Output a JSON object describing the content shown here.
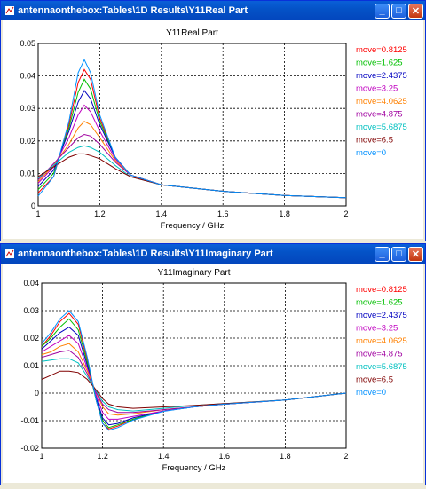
{
  "windows": [
    {
      "title": "antennaonthebox:Tables\\1D Results\\Y11Real Part",
      "minimize_icon": "minimize-icon",
      "maximize_icon": "maximize-icon",
      "close_icon": "close-icon"
    },
    {
      "title": "antennaonthebox:Tables\\1D Results\\Y11Imaginary Part",
      "minimize_icon": "minimize-icon",
      "maximize_icon": "maximize-icon",
      "close_icon": "close-icon"
    }
  ],
  "chart_data": [
    {
      "type": "line",
      "title": "Y11Real Part",
      "xlabel": "Frequency / GHz",
      "ylabel": "",
      "xlim": [
        1,
        2
      ],
      "ylim": [
        0,
        0.05
      ],
      "xticks": [
        "1",
        "1.2",
        "1.4",
        "1.6",
        "1.8",
        "2"
      ],
      "yticks": [
        "0",
        "0.01",
        "0.02",
        "0.03",
        "0.04",
        "0.05"
      ],
      "grid": true,
      "legend_position": "right",
      "series": [
        {
          "name": "move=0.8125",
          "color": "#ff0000",
          "x": [
            1,
            1.05,
            1.1,
            1.13,
            1.15,
            1.17,
            1.2,
            1.25,
            1.3,
            1.4,
            1.5,
            1.6,
            1.8,
            2
          ],
          "y": [
            0.004,
            0.009,
            0.025,
            0.038,
            0.042,
            0.039,
            0.027,
            0.015,
            0.0095,
            0.0065,
            0.0055,
            0.0045,
            0.0032,
            0.0025
          ]
        },
        {
          "name": "move=1.625",
          "color": "#00c000",
          "x": [
            1,
            1.05,
            1.1,
            1.13,
            1.15,
            1.17,
            1.2,
            1.25,
            1.3,
            1.4,
            1.5,
            1.6,
            1.8,
            2
          ],
          "y": [
            0.005,
            0.01,
            0.024,
            0.035,
            0.039,
            0.036,
            0.026,
            0.015,
            0.0095,
            0.0065,
            0.0055,
            0.0045,
            0.0032,
            0.0025
          ]
        },
        {
          "name": "move=2.4375",
          "color": "#0000c0",
          "x": [
            1,
            1.05,
            1.1,
            1.13,
            1.15,
            1.17,
            1.2,
            1.25,
            1.3,
            1.4,
            1.5,
            1.6,
            1.8,
            2
          ],
          "y": [
            0.006,
            0.011,
            0.023,
            0.032,
            0.0355,
            0.033,
            0.025,
            0.015,
            0.0095,
            0.0065,
            0.0055,
            0.0045,
            0.0032,
            0.0025
          ]
        },
        {
          "name": "move=3.25",
          "color": "#c000c0",
          "x": [
            1,
            1.05,
            1.1,
            1.13,
            1.15,
            1.17,
            1.2,
            1.25,
            1.3,
            1.4,
            1.5,
            1.6,
            1.8,
            2
          ],
          "y": [
            0.007,
            0.012,
            0.021,
            0.028,
            0.031,
            0.029,
            0.023,
            0.0145,
            0.0095,
            0.0065,
            0.0055,
            0.0045,
            0.0032,
            0.0025
          ]
        },
        {
          "name": "move=4.0625",
          "color": "#ff8000",
          "x": [
            1,
            1.05,
            1.1,
            1.13,
            1.15,
            1.17,
            1.2,
            1.25,
            1.3,
            1.4,
            1.5,
            1.6,
            1.8,
            2
          ],
          "y": [
            0.0075,
            0.0125,
            0.019,
            0.024,
            0.026,
            0.025,
            0.021,
            0.014,
            0.0095,
            0.0065,
            0.0055,
            0.0045,
            0.0032,
            0.0025
          ]
        },
        {
          "name": "move=4.875",
          "color": "#a000a0",
          "x": [
            1,
            1.05,
            1.1,
            1.13,
            1.15,
            1.17,
            1.2,
            1.25,
            1.3,
            1.4,
            1.5,
            1.6,
            1.8,
            2
          ],
          "y": [
            0.008,
            0.013,
            0.018,
            0.021,
            0.022,
            0.0215,
            0.019,
            0.0135,
            0.0095,
            0.0065,
            0.0055,
            0.0045,
            0.0032,
            0.0025
          ]
        },
        {
          "name": "move=5.6875",
          "color": "#00c0c0",
          "x": [
            1,
            1.05,
            1.1,
            1.13,
            1.15,
            1.17,
            1.2,
            1.25,
            1.3,
            1.4,
            1.5,
            1.6,
            1.8,
            2
          ],
          "y": [
            0.0085,
            0.0125,
            0.0165,
            0.018,
            0.0185,
            0.018,
            0.0165,
            0.0125,
            0.009,
            0.0065,
            0.0055,
            0.0045,
            0.0032,
            0.0025
          ]
        },
        {
          "name": "move=6.5",
          "color": "#800000",
          "x": [
            1,
            1.05,
            1.1,
            1.13,
            1.15,
            1.17,
            1.2,
            1.25,
            1.3,
            1.4,
            1.5,
            1.6,
            1.8,
            2
          ],
          "y": [
            0.009,
            0.012,
            0.015,
            0.016,
            0.016,
            0.0155,
            0.0145,
            0.0115,
            0.009,
            0.0065,
            0.0055,
            0.0045,
            0.0032,
            0.0025
          ]
        },
        {
          "name": "move=0",
          "color": "#0090ff",
          "x": [
            1,
            1.05,
            1.1,
            1.13,
            1.15,
            1.17,
            1.2,
            1.25,
            1.3,
            1.4,
            1.5,
            1.6,
            1.8,
            2
          ],
          "y": [
            0.003,
            0.009,
            0.026,
            0.041,
            0.045,
            0.041,
            0.028,
            0.015,
            0.0095,
            0.0065,
            0.0055,
            0.0045,
            0.0032,
            0.0025
          ]
        }
      ]
    },
    {
      "type": "line",
      "title": "Y11Imaginary Part",
      "xlabel": "Frequency / GHz",
      "ylabel": "",
      "xlim": [
        1,
        2
      ],
      "ylim": [
        -0.02,
        0.04
      ],
      "xticks": [
        "1",
        "1.2",
        "1.4",
        "1.6",
        "1.8",
        "2"
      ],
      "yticks": [
        "-0.02",
        "-0.01",
        "0",
        "0.01",
        "0.02",
        "0.03",
        "0.04"
      ],
      "grid": true,
      "legend_position": "right",
      "series": [
        {
          "name": "move=0.8125",
          "color": "#ff0000",
          "x": [
            1,
            1.03,
            1.06,
            1.09,
            1.12,
            1.15,
            1.18,
            1.2,
            1.22,
            1.25,
            1.3,
            1.4,
            1.5,
            1.6,
            1.8,
            2
          ],
          "y": [
            0.017,
            0.021,
            0.026,
            0.029,
            0.025,
            0.012,
            -0.003,
            -0.011,
            -0.013,
            -0.012,
            -0.0095,
            -0.0065,
            -0.005,
            -0.004,
            -0.0025,
            0
          ]
        },
        {
          "name": "move=1.625",
          "color": "#00c000",
          "x": [
            1,
            1.03,
            1.06,
            1.09,
            1.12,
            1.15,
            1.18,
            1.2,
            1.22,
            1.25,
            1.3,
            1.4,
            1.5,
            1.6,
            1.8,
            2
          ],
          "y": [
            0.017,
            0.02,
            0.024,
            0.027,
            0.023,
            0.011,
            -0.003,
            -0.01,
            -0.0125,
            -0.0115,
            -0.0095,
            -0.0065,
            -0.005,
            -0.004,
            -0.0025,
            0
          ]
        },
        {
          "name": "move=2.4375",
          "color": "#0000c0",
          "x": [
            1,
            1.03,
            1.06,
            1.09,
            1.12,
            1.15,
            1.18,
            1.2,
            1.22,
            1.25,
            1.3,
            1.4,
            1.5,
            1.6,
            1.8,
            2
          ],
          "y": [
            0.016,
            0.019,
            0.022,
            0.024,
            0.021,
            0.01,
            -0.002,
            -0.009,
            -0.0115,
            -0.011,
            -0.009,
            -0.0065,
            -0.005,
            -0.004,
            -0.0025,
            0
          ]
        },
        {
          "name": "move=3.25",
          "color": "#c000c0",
          "x": [
            1,
            1.03,
            1.06,
            1.09,
            1.12,
            1.15,
            1.18,
            1.2,
            1.22,
            1.25,
            1.3,
            1.4,
            1.5,
            1.6,
            1.8,
            2
          ],
          "y": [
            0.015,
            0.017,
            0.019,
            0.021,
            0.018,
            0.009,
            -0.001,
            -0.007,
            -0.0095,
            -0.0095,
            -0.0085,
            -0.0065,
            -0.005,
            -0.004,
            -0.0025,
            0
          ]
        },
        {
          "name": "move=4.0625",
          "color": "#ff8000",
          "x": [
            1,
            1.03,
            1.06,
            1.09,
            1.12,
            1.15,
            1.18,
            1.2,
            1.22,
            1.25,
            1.3,
            1.4,
            1.5,
            1.6,
            1.8,
            2
          ],
          "y": [
            0.014,
            0.015,
            0.017,
            0.018,
            0.015,
            0.008,
            0,
            -0.005,
            -0.0075,
            -0.008,
            -0.0075,
            -0.006,
            -0.005,
            -0.004,
            -0.0025,
            0
          ]
        },
        {
          "name": "move=4.875",
          "color": "#a000a0",
          "x": [
            1,
            1.03,
            1.06,
            1.09,
            1.12,
            1.15,
            1.18,
            1.2,
            1.22,
            1.25,
            1.3,
            1.4,
            1.5,
            1.6,
            1.8,
            2
          ],
          "y": [
            0.013,
            0.014,
            0.015,
            0.0155,
            0.013,
            0.007,
            0,
            -0.004,
            -0.006,
            -0.007,
            -0.007,
            -0.006,
            -0.005,
            -0.004,
            -0.0025,
            0
          ]
        },
        {
          "name": "move=5.6875",
          "color": "#00c0c0",
          "x": [
            1,
            1.03,
            1.06,
            1.09,
            1.12,
            1.15,
            1.18,
            1.2,
            1.22,
            1.25,
            1.3,
            1.4,
            1.5,
            1.6,
            1.8,
            2
          ],
          "y": [
            0.0115,
            0.012,
            0.0125,
            0.0125,
            0.011,
            0.006,
            0.0005,
            -0.003,
            -0.005,
            -0.006,
            -0.0065,
            -0.0055,
            -0.0045,
            -0.0038,
            -0.0025,
            0
          ]
        },
        {
          "name": "move=6.5",
          "color": "#800000",
          "x": [
            1,
            1.03,
            1.06,
            1.09,
            1.12,
            1.15,
            1.18,
            1.2,
            1.22,
            1.25,
            1.3,
            1.4,
            1.5,
            1.6,
            1.8,
            2
          ],
          "y": [
            0.005,
            0.0065,
            0.008,
            0.008,
            0.0075,
            0.005,
            0.001,
            -0.002,
            -0.004,
            -0.005,
            -0.0055,
            -0.005,
            -0.0045,
            -0.0038,
            -0.0025,
            0
          ]
        },
        {
          "name": "move=0",
          "color": "#0090ff",
          "x": [
            1,
            1.03,
            1.06,
            1.09,
            1.12,
            1.15,
            1.18,
            1.2,
            1.22,
            1.25,
            1.3,
            1.4,
            1.5,
            1.6,
            1.8,
            2
          ],
          "y": [
            0.018,
            0.022,
            0.027,
            0.03,
            0.026,
            0.013,
            -0.003,
            -0.011,
            -0.0135,
            -0.0125,
            -0.0098,
            -0.0066,
            -0.005,
            -0.004,
            -0.0025,
            0
          ]
        }
      ]
    }
  ]
}
